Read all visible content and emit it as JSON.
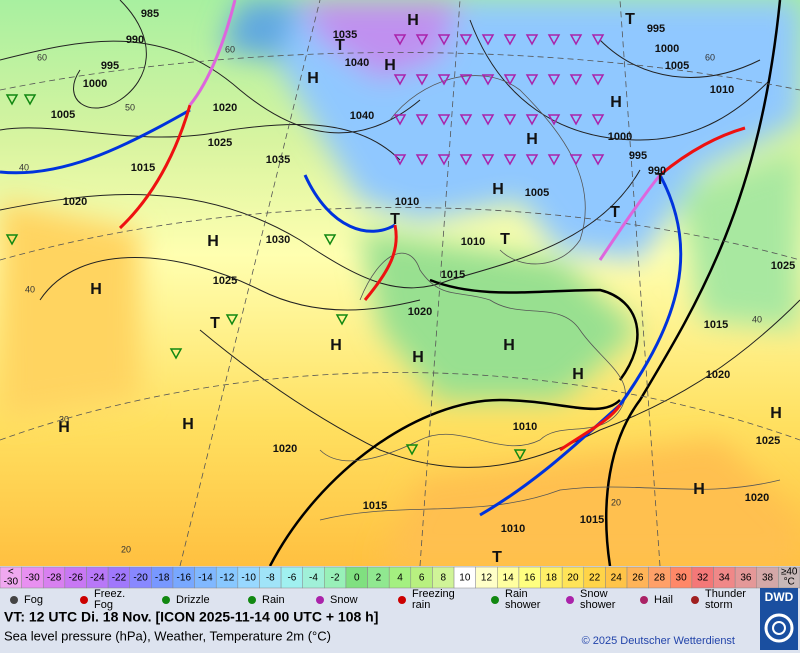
{
  "map": {
    "pressure_labels": [
      "985",
      "990",
      "995",
      "1000",
      "1005",
      "1015",
      "1020",
      "1025",
      "1030",
      "1035",
      "1035",
      "1040",
      "1040",
      "1020",
      "1025",
      "1010",
      "1010",
      "1005",
      "1000",
      "995",
      "990",
      "995",
      "1000",
      "1005",
      "1010",
      "1015",
      "1020",
      "1015",
      "1020",
      "1025",
      "1020",
      "1010",
      "1015",
      "1015",
      "1010",
      "1020",
      "1025"
    ],
    "centers": [
      "H",
      "H",
      "H",
      "H",
      "H",
      "H",
      "H",
      "H",
      "H",
      "H",
      "H",
      "H",
      "H",
      "H",
      "H",
      "H",
      "T",
      "T",
      "T",
      "T",
      "T",
      "T",
      "T",
      "T"
    ],
    "temperature_labels": [
      "60",
      "60",
      "50",
      "40",
      "40",
      "30",
      "20",
      "20",
      "60",
      "40"
    ]
  },
  "colorbar": {
    "cells": [
      {
        "lines": [
          "<",
          "-30"
        ],
        "color": "#f0a8f0"
      },
      {
        "lines": [
          "-30"
        ],
        "color": "#e890f0"
      },
      {
        "lines": [
          "-28"
        ],
        "color": "#d880f0"
      },
      {
        "lines": [
          "-26"
        ],
        "color": "#c878f4"
      },
      {
        "lines": [
          "-24"
        ],
        "color": "#b878f8"
      },
      {
        "lines": [
          "-22"
        ],
        "color": "#a078fc"
      },
      {
        "lines": [
          "-20"
        ],
        "color": "#8888ff"
      },
      {
        "lines": [
          "-18"
        ],
        "color": "#7898ff"
      },
      {
        "lines": [
          "-16"
        ],
        "color": "#78a8ff"
      },
      {
        "lines": [
          "-14"
        ],
        "color": "#80b8ff"
      },
      {
        "lines": [
          "-12"
        ],
        "color": "#88c8ff"
      },
      {
        "lines": [
          "-10"
        ],
        "color": "#98d8ff"
      },
      {
        "lines": [
          "-8"
        ],
        "color": "#a0e4f8"
      },
      {
        "lines": [
          "-6"
        ],
        "color": "#a0f0f0"
      },
      {
        "lines": [
          "-4"
        ],
        "color": "#a0f0d8"
      },
      {
        "lines": [
          "-2"
        ],
        "color": "#98f0b8"
      },
      {
        "lines": [
          "0"
        ],
        "color": "#80e080"
      },
      {
        "lines": [
          "2"
        ],
        "color": "#90e890"
      },
      {
        "lines": [
          "4"
        ],
        "color": "#a4f080"
      },
      {
        "lines": [
          "6"
        ],
        "color": "#b8f080"
      },
      {
        "lines": [
          "8"
        ],
        "color": "#d0f498"
      },
      {
        "lines": [
          "10"
        ],
        "color": "#ffffff"
      },
      {
        "lines": [
          "12"
        ],
        "color": "#ffffc8"
      },
      {
        "lines": [
          "14"
        ],
        "color": "#ffffa0"
      },
      {
        "lines": [
          "16"
        ],
        "color": "#ffff80"
      },
      {
        "lines": [
          "18"
        ],
        "color": "#fff068"
      },
      {
        "lines": [
          "20"
        ],
        "color": "#ffe458"
      },
      {
        "lines": [
          "22"
        ],
        "color": "#ffd448"
      },
      {
        "lines": [
          "24"
        ],
        "color": "#ffc448"
      },
      {
        "lines": [
          "26"
        ],
        "color": "#ffb458"
      },
      {
        "lines": [
          "28"
        ],
        "color": "#ffa068"
      },
      {
        "lines": [
          "30"
        ],
        "color": "#ff8868"
      },
      {
        "lines": [
          "32"
        ],
        "color": "#f47878"
      },
      {
        "lines": [
          "34"
        ],
        "color": "#f08888"
      },
      {
        "lines": [
          "36"
        ],
        "color": "#e49898"
      },
      {
        "lines": [
          "38"
        ],
        "color": "#d4a8a8"
      },
      {
        "lines": [
          "≥40",
          "°C"
        ],
        "color": "#c8b8b8"
      }
    ]
  },
  "legend": [
    {
      "lines": [
        "Fog"
      ]
    },
    {
      "lines": [
        "Freez.",
        "Fog"
      ]
    },
    {
      "lines": [
        "Drizzle"
      ]
    },
    {
      "lines": [
        "Rain"
      ]
    },
    {
      "lines": [
        "Snow"
      ]
    },
    {
      "lines": [
        "Freezing",
        "rain"
      ]
    },
    {
      "lines": [
        "Rain",
        "shower"
      ]
    },
    {
      "lines": [
        "Snow",
        "shower"
      ]
    },
    {
      "lines": [
        "Hail"
      ]
    },
    {
      "lines": [
        "Thunder",
        "storm"
      ]
    }
  ],
  "footer": {
    "valid_time": "VT: 12 UTC Di.  18 Nov. [ICON 2025-11-14  00 UTC + 108 h]",
    "subtitle": "Sea level pressure (hPa), Weather, Temperature 2m (°C)",
    "copyright": "© 2025 Deutscher Wetterdienst",
    "logo": "DWD"
  }
}
